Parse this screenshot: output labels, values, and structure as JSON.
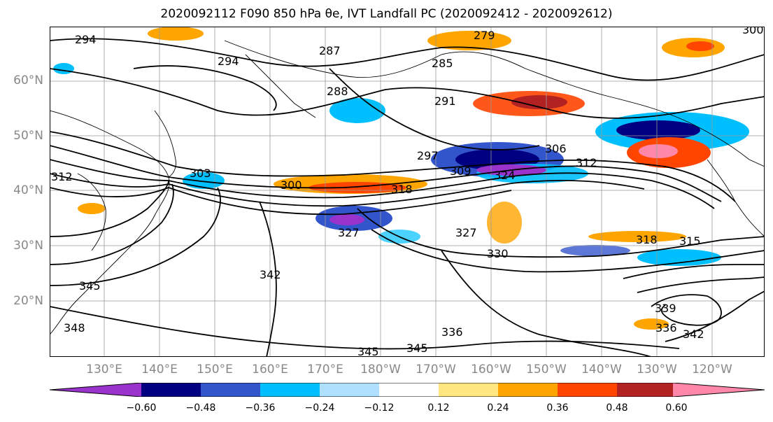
{
  "title": "2020092112 F090 850 hPa θe, IVT Landfall PC (2020092412 - 2020092612)",
  "map": {
    "lat_labels": [
      "60°N",
      "50°N",
      "40°N",
      "30°N",
      "20°N"
    ],
    "lon_labels": [
      "130°E",
      "140°E",
      "150°E",
      "160°E",
      "170°E",
      "180°W",
      "170°W",
      "160°W",
      "150°W",
      "140°W",
      "130°W",
      "120°W"
    ],
    "contour_labels": [
      "294",
      "294",
      "287",
      "279",
      "285",
      "288",
      "291",
      "297",
      "306",
      "312",
      "303",
      "300",
      "309",
      "318",
      "324",
      "327",
      "327",
      "330",
      "315",
      "318",
      "345",
      "348",
      "342",
      "336",
      "345",
      "345",
      "339",
      "342",
      "336",
      "312",
      "300"
    ]
  },
  "colorbar": {
    "colors": [
      "#9933cc",
      "#000080",
      "#3355cc",
      "#00bfff",
      "#b0e0ff",
      "#ffffff",
      "#ffe680",
      "#ffa500",
      "#ff4500",
      "#b22222",
      "#ff88aa"
    ],
    "tick_labels": [
      "−0.60",
      "−0.48",
      "−0.36",
      "−0.24",
      "−0.12",
      "0.12",
      "0.24",
      "0.36",
      "0.48",
      "0.60"
    ]
  }
}
